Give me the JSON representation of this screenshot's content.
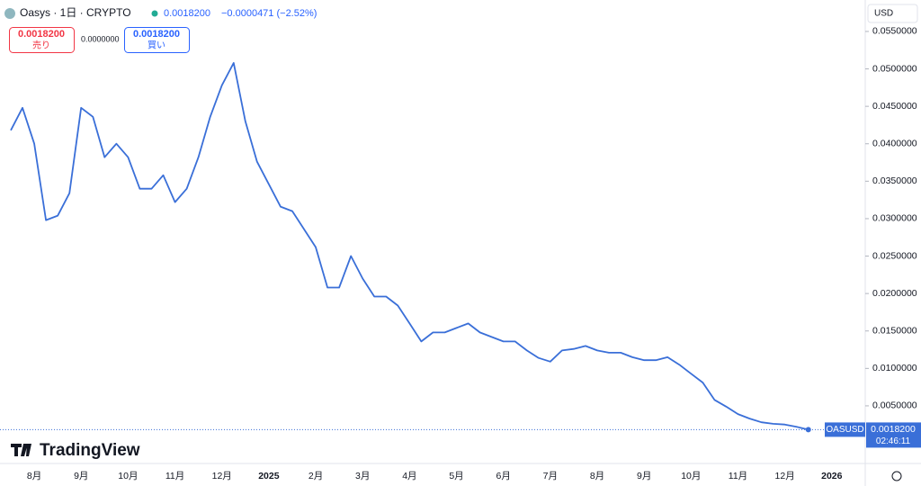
{
  "header": {
    "symbol": "Oasys · 1日 · CRYPTO",
    "price": "0.0018200",
    "change": "−0.0000471 (−2.52%)",
    "sell_price": "0.0018200",
    "sell": "売り",
    "spread": "0.0000000",
    "buy_price": "0.0018200",
    "buy": "買い",
    "currency": "USD",
    "brand": "TradingView"
  },
  "price_label": {
    "symbol": "OASUSD",
    "price": "0.0018200",
    "countdown": "02:46:11"
  },
  "chart_data": {
    "type": "line",
    "color": "#3a6fd8",
    "grid": false,
    "categories": [
      null,
      null,
      "8月",
      null,
      null,
      null,
      "9月",
      null,
      null,
      null,
      "10月",
      null,
      null,
      null,
      "11月",
      null,
      null,
      null,
      "12月",
      null,
      null,
      null,
      "2025",
      null,
      null,
      null,
      "2月",
      null,
      null,
      null,
      "3月",
      null,
      null,
      null,
      "4月",
      null,
      null,
      null,
      "5月",
      null,
      null,
      null,
      "6月",
      null,
      null,
      null,
      "7月",
      null,
      null,
      null,
      "8月",
      null,
      null,
      null,
      "9月",
      null,
      null,
      null,
      "10月",
      null,
      null,
      null,
      "11月",
      null,
      null,
      null,
      "12月",
      null,
      null,
      null,
      "2026"
    ],
    "values": [
      0.0418,
      0.0448,
      0.04,
      0.0298,
      0.0304,
      0.0334,
      0.0448,
      0.0436,
      0.0382,
      0.04,
      0.0382,
      0.034,
      0.034,
      0.0358,
      0.0322,
      0.034,
      0.0382,
      0.0436,
      0.0478,
      0.0508,
      0.043,
      0.0376,
      0.0346,
      0.0316,
      0.031,
      0.0286,
      0.0262,
      0.0208,
      0.0208,
      0.025,
      0.022,
      0.0196,
      0.0196,
      0.0184,
      0.016,
      0.0136,
      0.0148,
      0.0148,
      0.0154,
      0.016,
      0.0148,
      0.0142,
      0.0136,
      0.0136,
      0.0124,
      0.0114,
      0.0109,
      0.0124,
      0.0126,
      0.013,
      0.0124,
      0.0121,
      0.0121,
      0.0115,
      0.0111,
      0.0111,
      0.0115,
      0.0105,
      0.0093,
      0.0081,
      0.0058,
      0.0049,
      0.0039,
      0.0033,
      0.0028,
      0.0026,
      0.0025,
      0.0022,
      0.00182,
      null,
      null
    ],
    "ylim": [
      -0.0027,
      0.0592
    ],
    "yticks": [
      {
        "value": 0.005,
        "label": "0.0050000"
      },
      {
        "value": 0.01,
        "label": "0.0100000"
      },
      {
        "value": 0.015,
        "label": "0.0150000"
      },
      {
        "value": 0.02,
        "label": "0.0200000"
      },
      {
        "value": 0.025,
        "label": "0.0250000"
      },
      {
        "value": 0.03,
        "label": "0.0300000"
      },
      {
        "value": 0.035,
        "label": "0.0350000"
      },
      {
        "value": 0.04,
        "label": "0.0400000"
      },
      {
        "value": 0.045,
        "label": "0.0450000"
      },
      {
        "value": 0.05,
        "label": "0.0500000"
      },
      {
        "value": 0.055,
        "label": "0.0550000"
      }
    ]
  }
}
